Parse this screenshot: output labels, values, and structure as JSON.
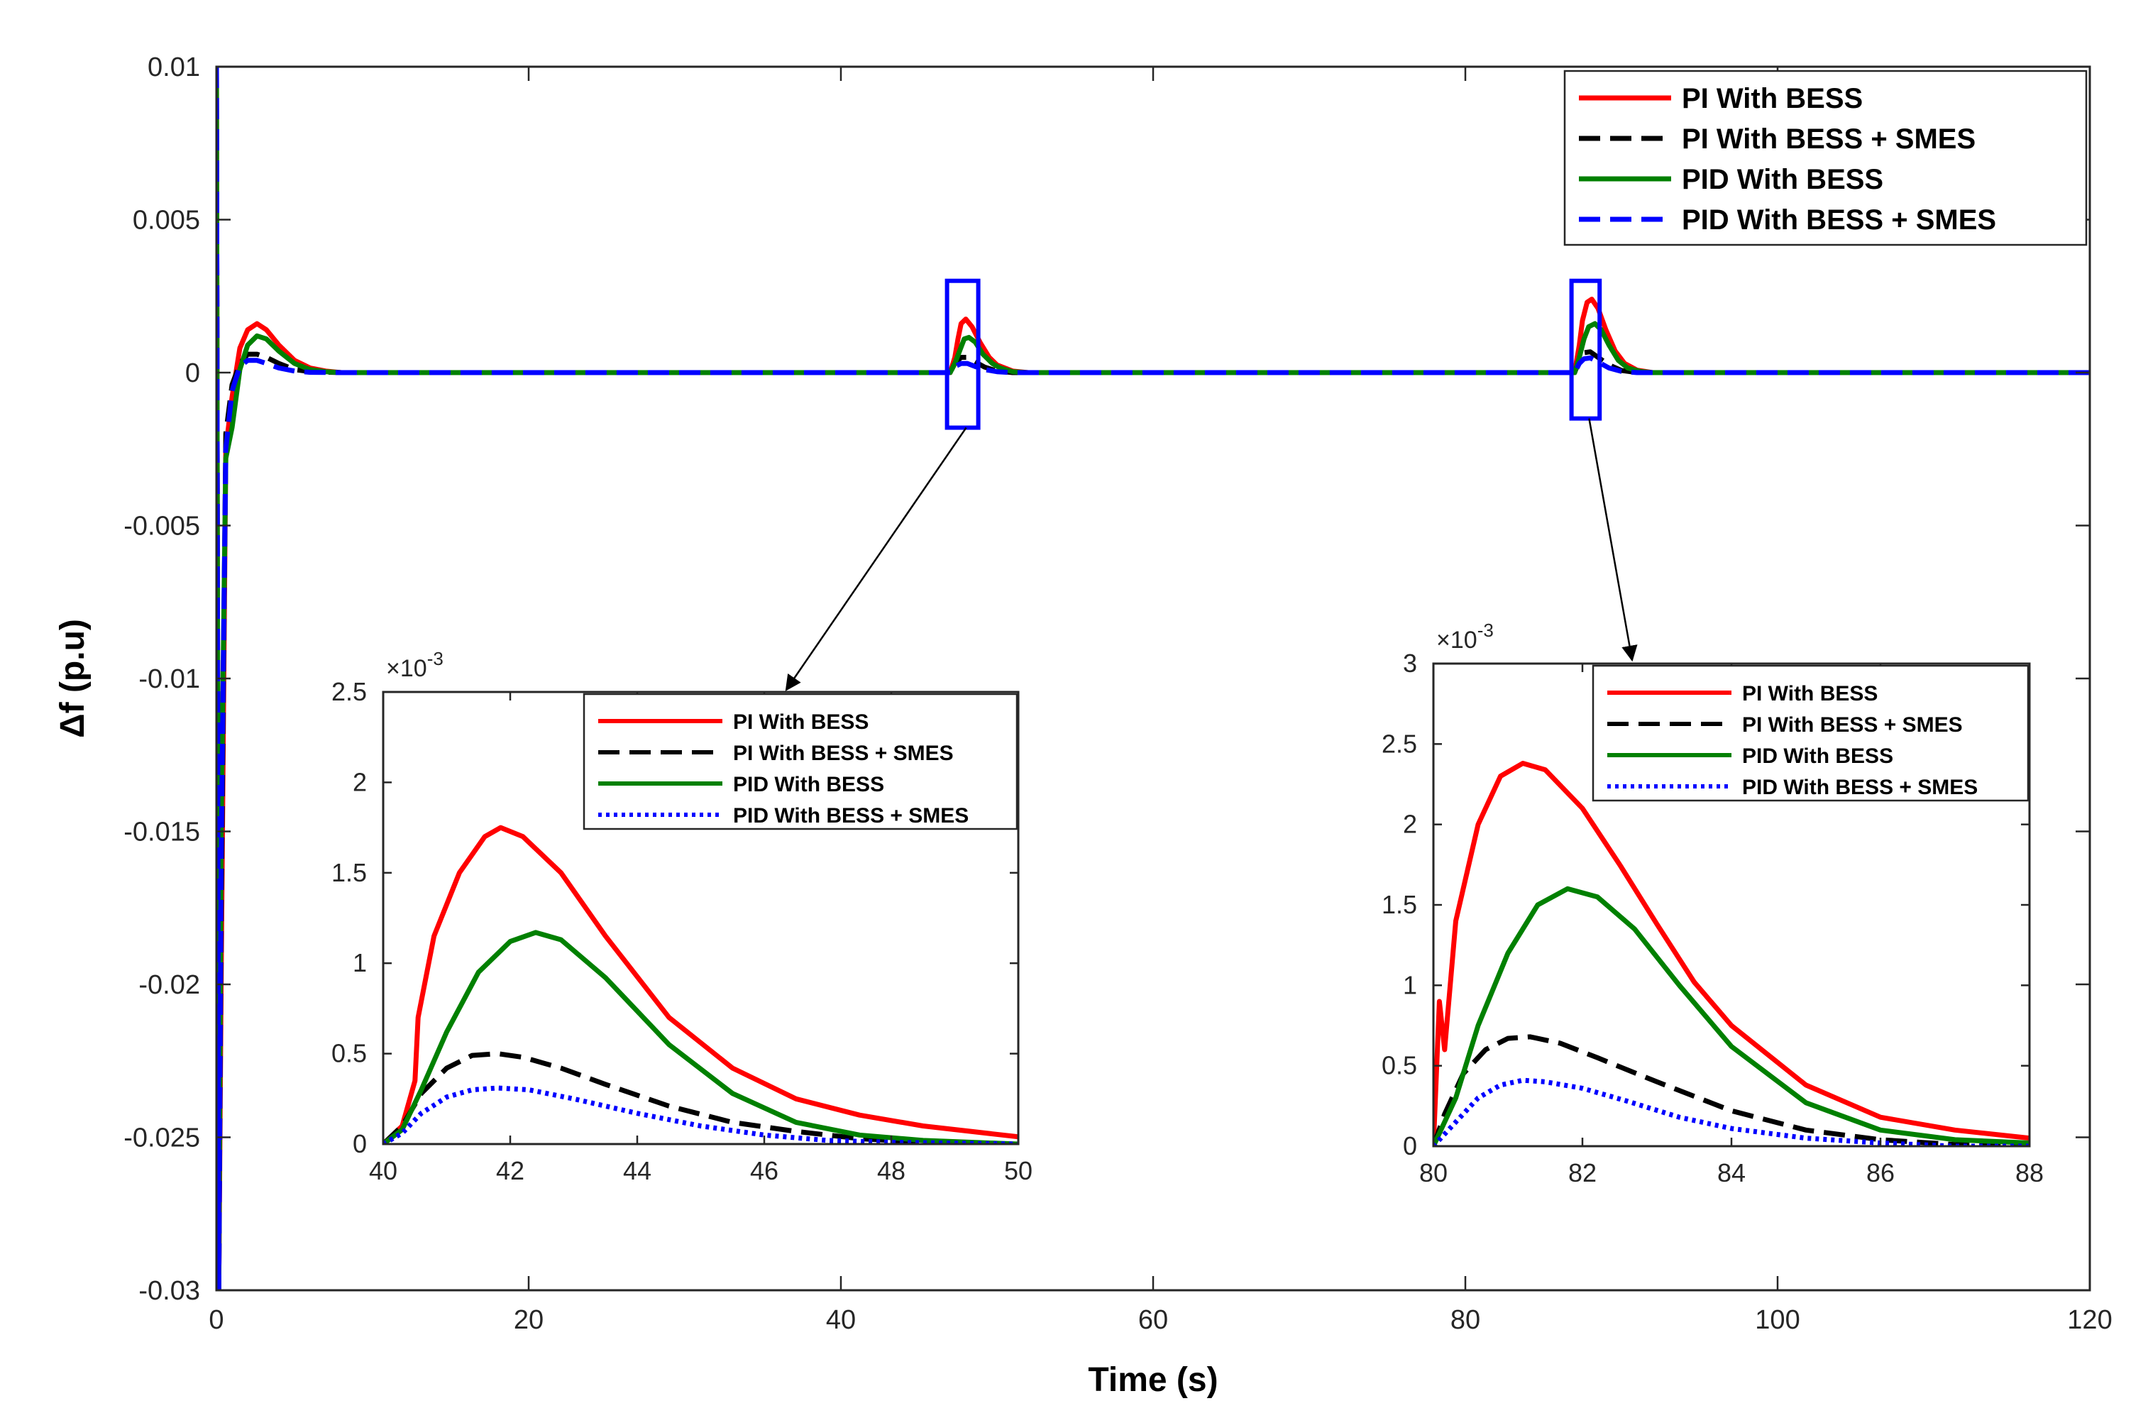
{
  "chart_data": [
    {
      "id": "main",
      "type": "line",
      "title": "",
      "xlabel": "Time (s)",
      "ylabel": "Δf (p.u)",
      "xlim": [
        0,
        120
      ],
      "ylim": [
        -0.03,
        0.01
      ],
      "xticks": [
        0,
        20,
        40,
        60,
        80,
        100,
        120
      ],
      "xtick_labels": [
        "0",
        "20",
        "40",
        "60",
        "80",
        "100",
        "120"
      ],
      "yticks": [
        0.01,
        0.005,
        0,
        -0.005,
        -0.01,
        -0.015,
        -0.02,
        -0.025,
        -0.03
      ],
      "ytick_labels": [
        "0.01",
        "0.005",
        "0",
        "-0.005",
        "-0.01",
        "-0.015",
        "-0.02",
        "-0.025",
        "-0.03"
      ],
      "legend_position": "top-right",
      "series": [
        {
          "name": "PI With BESS",
          "color": "#ff0000",
          "style": "solid",
          "x": [
            0,
            0.15,
            0.3,
            0.6,
            1.0,
            1.5,
            2.0,
            2.6,
            3.2,
            4.0,
            5.0,
            6.0,
            7.0,
            8.0,
            9.5,
            12,
            47.0,
            47.3,
            47.5,
            47.7,
            48.0,
            48.4,
            48.9,
            49.5,
            50.0,
            51.0,
            52,
            87.0,
            87.3,
            87.5,
            87.8,
            88.1,
            88.5,
            89.0,
            89.6,
            90.2,
            91.0,
            92,
            120
          ],
          "y": [
            0.01,
            -0.03,
            -0.02,
            -0.0025,
            -0.0008,
            0.0008,
            0.0014,
            0.0016,
            0.0014,
            0.0009,
            0.0004,
            0.00015,
            5e-05,
            0,
            0,
            0,
            0,
            0.0005,
            0.0011,
            0.0016,
            0.00175,
            0.0015,
            0.001,
            0.0005,
            0.00025,
            5e-05,
            0,
            0,
            0.0009,
            0.0017,
            0.0023,
            0.0024,
            0.0021,
            0.0014,
            0.0007,
            0.0003,
            8e-05,
            0,
            0
          ]
        },
        {
          "name": "PI With BESS + SMES",
          "color": "#000000",
          "style": "dashed",
          "x": [
            0,
            0.15,
            0.3,
            0.6,
            1.0,
            1.5,
            2.0,
            2.6,
            3.2,
            4.0,
            5.0,
            6.0,
            8.0,
            12,
            47.0,
            47.3,
            47.7,
            48.1,
            48.6,
            49.2,
            50.0,
            51,
            87.0,
            87.3,
            87.6,
            88.0,
            88.5,
            89.2,
            90.0,
            91,
            120
          ],
          "y": [
            0.01,
            -0.03,
            -0.018,
            -0.002,
            -0.0004,
            0.0003,
            0.0006,
            0.0006,
            0.0005,
            0.0003,
            0.0001,
            3e-05,
            0,
            0,
            0,
            0.0003,
            0.0005,
            0.0005,
            0.00035,
            0.00018,
            5e-05,
            0,
            0,
            0.0004,
            0.00065,
            0.00068,
            0.0005,
            0.00025,
            7e-05,
            0,
            0
          ]
        },
        {
          "name": "PID With BESS",
          "color": "#008000",
          "style": "solid",
          "x": [
            0,
            0.15,
            0.3,
            0.6,
            1.0,
            1.5,
            2.0,
            2.6,
            3.2,
            4.0,
            5.0,
            6.0,
            7.0,
            8.0,
            9.5,
            12,
            47.0,
            47.3,
            47.6,
            47.9,
            48.2,
            48.6,
            49.1,
            49.7,
            50.2,
            51.0,
            52,
            87.0,
            87.3,
            87.6,
            87.9,
            88.3,
            88.7,
            89.2,
            89.8,
            90.4,
            91.2,
            92,
            120
          ],
          "y": [
            0.01,
            -0.03,
            -0.015,
            -0.0028,
            -0.0018,
            0.0001,
            0.0009,
            0.0012,
            0.0011,
            0.0007,
            0.0003,
            0.0001,
            3e-05,
            0,
            0,
            0,
            0,
            0.0003,
            0.0007,
            0.0011,
            0.00115,
            0.001,
            0.0006,
            0.0003,
            0.00015,
            3e-05,
            0,
            0,
            0.0005,
            0.0011,
            0.0015,
            0.0016,
            0.0014,
            0.0009,
            0.0004,
            0.00015,
            4e-05,
            0,
            0
          ]
        },
        {
          "name": "PID With BESS + SMES",
          "color": "#0000ff",
          "style": "dashed",
          "x": [
            0,
            0.15,
            0.3,
            0.6,
            1.0,
            1.5,
            2.0,
            2.6,
            3.2,
            4.0,
            5.0,
            6.0,
            8.0,
            12,
            47.0,
            47.3,
            47.7,
            48.1,
            48.6,
            49.2,
            50.0,
            51,
            87.0,
            87.3,
            87.6,
            88.0,
            88.5,
            89.2,
            90.0,
            91,
            120
          ],
          "y": [
            0.01,
            -0.03,
            -0.016,
            -0.0025,
            -0.0006,
            0.0002,
            0.0004,
            0.0004,
            0.0003,
            0.00015,
            5e-05,
            1e-05,
            0,
            0,
            0,
            0.0002,
            0.0003,
            0.0003,
            0.0002,
            0.0001,
            3e-05,
            0,
            0,
            0.0003,
            0.00045,
            0.00048,
            0.00035,
            0.00015,
            4e-05,
            0,
            0
          ]
        }
      ]
    },
    {
      "id": "inset1",
      "type": "line",
      "title": "",
      "xlabel": "",
      "ylabel": "",
      "xlim": [
        40,
        50
      ],
      "ylim": [
        0,
        2.5
      ],
      "y_multiplier_base": "×10",
      "y_multiplier_exp": "-3",
      "xticks": [
        40,
        42,
        44,
        46,
        48,
        50
      ],
      "xtick_labels": [
        "40",
        "42",
        "44",
        "46",
        "48",
        "50"
      ],
      "yticks": [
        0,
        0.5,
        1,
        1.5,
        2,
        2.5
      ],
      "ytick_labels": [
        "0",
        "0.5",
        "1",
        "1.5",
        "2",
        "2.5"
      ],
      "legend_position": "top-right",
      "series": [
        {
          "name": "PI With BESS",
          "color": "#ff0000",
          "style": "solid",
          "x": [
            40,
            40.3,
            40.5,
            40.55,
            40.8,
            41.2,
            41.6,
            41.85,
            42.2,
            42.8,
            43.5,
            44.5,
            45.5,
            46.5,
            47.5,
            48.5,
            50
          ],
          "y": [
            0,
            0.1,
            0.35,
            0.7,
            1.15,
            1.5,
            1.7,
            1.75,
            1.7,
            1.5,
            1.15,
            0.7,
            0.42,
            0.25,
            0.16,
            0.1,
            0.04
          ]
        },
        {
          "name": "PI With BESS + SMES",
          "color": "#000000",
          "style": "dashed",
          "x": [
            40,
            40.3,
            40.6,
            41.0,
            41.4,
            41.8,
            42.2,
            42.8,
            43.5,
            44.5,
            45.5,
            46.5,
            47.5,
            48.5,
            50
          ],
          "y": [
            0,
            0.1,
            0.28,
            0.42,
            0.49,
            0.5,
            0.48,
            0.42,
            0.33,
            0.21,
            0.12,
            0.07,
            0.03,
            0.01,
            0.0
          ]
        },
        {
          "name": "PID With BESS",
          "color": "#008000",
          "style": "solid",
          "x": [
            40,
            40.3,
            40.6,
            41.0,
            41.5,
            42.0,
            42.4,
            42.8,
            43.5,
            44.5,
            45.5,
            46.5,
            47.5,
            48.5,
            50
          ],
          "y": [
            0,
            0.08,
            0.3,
            0.62,
            0.95,
            1.12,
            1.17,
            1.13,
            0.92,
            0.55,
            0.28,
            0.12,
            0.05,
            0.02,
            0.0
          ]
        },
        {
          "name": "PID With BESS + SMES",
          "color": "#0000ff",
          "style": "dotted",
          "x": [
            40,
            40.3,
            40.6,
            41.0,
            41.4,
            41.8,
            42.3,
            43.0,
            44.0,
            45.0,
            46.0,
            47.0,
            48.0,
            50
          ],
          "y": [
            0,
            0.06,
            0.17,
            0.26,
            0.3,
            0.31,
            0.3,
            0.25,
            0.17,
            0.1,
            0.05,
            0.02,
            0.01,
            0.0
          ]
        }
      ]
    },
    {
      "id": "inset2",
      "type": "line",
      "title": "",
      "xlabel": "",
      "ylabel": "",
      "xlim": [
        80,
        88
      ],
      "ylim": [
        0,
        3
      ],
      "y_multiplier_base": "×10",
      "y_multiplier_exp": "-3",
      "xticks": [
        80,
        82,
        84,
        86,
        88
      ],
      "xtick_labels": [
        "80",
        "82",
        "84",
        "86",
        "88"
      ],
      "yticks": [
        0,
        0.5,
        1,
        1.5,
        2,
        2.5,
        3
      ],
      "ytick_labels": [
        "0",
        "0.5",
        "1",
        "1.5",
        "2",
        "2.5",
        "3"
      ],
      "legend_position": "top-right",
      "series": [
        {
          "name": "PI With BESS",
          "color": "#ff0000",
          "style": "solid",
          "x": [
            80,
            80.08,
            80.15,
            80.3,
            80.6,
            80.9,
            81.2,
            81.5,
            82.0,
            82.5,
            83.0,
            83.5,
            84.0,
            85.0,
            86.0,
            87.0,
            88
          ],
          "y": [
            0,
            0.9,
            0.6,
            1.4,
            2.0,
            2.3,
            2.38,
            2.34,
            2.1,
            1.75,
            1.38,
            1.02,
            0.75,
            0.38,
            0.18,
            0.1,
            0.05
          ]
        },
        {
          "name": "PI With BESS + SMES",
          "color": "#000000",
          "style": "dashed",
          "x": [
            80,
            80.15,
            80.4,
            80.7,
            81.0,
            81.3,
            81.7,
            82.2,
            83.0,
            84.0,
            85.0,
            86.0,
            87.0,
            88
          ],
          "y": [
            0,
            0.2,
            0.45,
            0.6,
            0.67,
            0.68,
            0.64,
            0.55,
            0.4,
            0.22,
            0.1,
            0.04,
            0.01,
            0.0
          ]
        },
        {
          "name": "PID With BESS",
          "color": "#008000",
          "style": "solid",
          "x": [
            80,
            80.3,
            80.6,
            81.0,
            81.4,
            81.8,
            82.2,
            82.7,
            83.3,
            84.0,
            85.0,
            86.0,
            87.0,
            88
          ],
          "y": [
            0,
            0.3,
            0.75,
            1.2,
            1.5,
            1.6,
            1.55,
            1.35,
            1.0,
            0.62,
            0.27,
            0.1,
            0.04,
            0.02
          ]
        },
        {
          "name": "PID With BESS + SMES",
          "color": "#0000ff",
          "style": "dotted",
          "x": [
            80,
            80.3,
            80.6,
            80.9,
            81.2,
            81.5,
            82.0,
            82.6,
            83.3,
            84.0,
            85.0,
            86.0,
            87.0,
            88
          ],
          "y": [
            0,
            0.15,
            0.3,
            0.38,
            0.41,
            0.4,
            0.36,
            0.28,
            0.18,
            0.11,
            0.05,
            0.02,
            0.0,
            0.0
          ]
        }
      ]
    }
  ]
}
